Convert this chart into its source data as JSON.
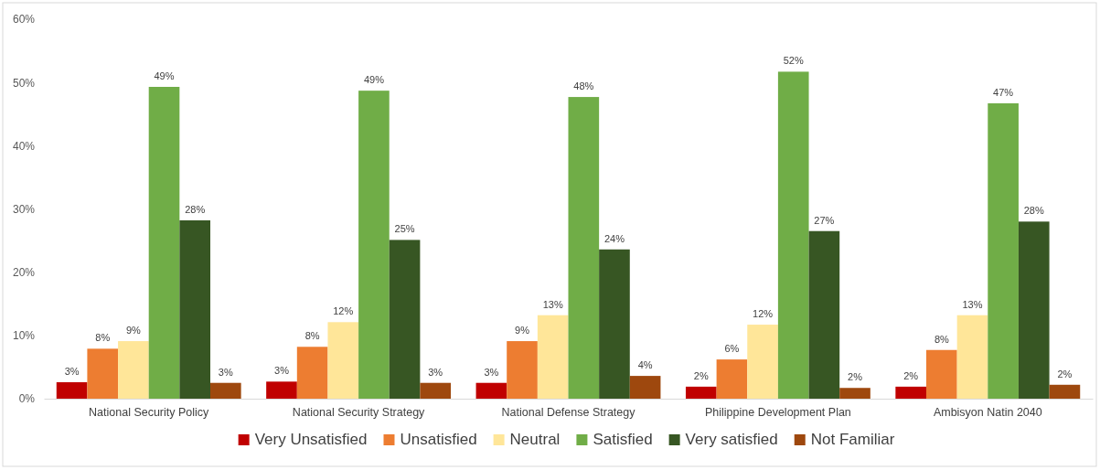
{
  "chart_data": {
    "type": "bar",
    "categories": [
      "National Security Policy",
      "National Security Strategy",
      "National Defense Strategy",
      "Philippine Development Plan",
      "Ambisyon Natin 2040"
    ],
    "series": [
      {
        "name": "Very Unsatisfied",
        "color": "#c00000",
        "values": [
          2.6,
          2.7,
          2.5,
          1.9,
          1.9
        ],
        "value_labels": [
          "3%",
          "3%",
          "3%",
          "2%",
          "2%"
        ]
      },
      {
        "name": "Unsatisfied",
        "color": "#ed7d31",
        "values": [
          7.9,
          8.2,
          9.1,
          6.2,
          7.7
        ],
        "value_labels": [
          "8%",
          "8%",
          "9%",
          "6%",
          "8%"
        ]
      },
      {
        "name": "Neutral",
        "color": "#ffe699",
        "values": [
          9.1,
          12.1,
          13.2,
          11.7,
          13.2
        ],
        "value_labels": [
          "9%",
          "12%",
          "13%",
          "12%",
          "13%"
        ]
      },
      {
        "name": "Satisfied",
        "color": "#70ad47",
        "values": [
          49.3,
          48.7,
          47.7,
          51.7,
          46.7
        ],
        "value_labels": [
          "49%",
          "49%",
          "48%",
          "52%",
          "47%"
        ]
      },
      {
        "name": "Very satisfied",
        "color": "#375623",
        "values": [
          28.2,
          25.1,
          23.6,
          26.5,
          28.0
        ],
        "value_labels": [
          "28%",
          "25%",
          "24%",
          "27%",
          "28%"
        ]
      },
      {
        "name": "Not Familiar",
        "color": "#9e480e",
        "values": [
          2.5,
          2.5,
          3.6,
          1.7,
          2.2
        ],
        "value_labels": [
          "3%",
          "3%",
          "4%",
          "2%",
          "2%"
        ]
      }
    ],
    "ylim": [
      0,
      60
    ],
    "yticks": [
      {
        "value": 0,
        "label": "0%"
      },
      {
        "value": 10,
        "label": "10%"
      },
      {
        "value": 20,
        "label": "20%"
      },
      {
        "value": 30,
        "label": "30%"
      },
      {
        "value": 40,
        "label": "40%"
      },
      {
        "value": 50,
        "label": "50%"
      },
      {
        "value": 60,
        "label": "60%"
      }
    ],
    "grid": false,
    "legend": "bottom"
  }
}
